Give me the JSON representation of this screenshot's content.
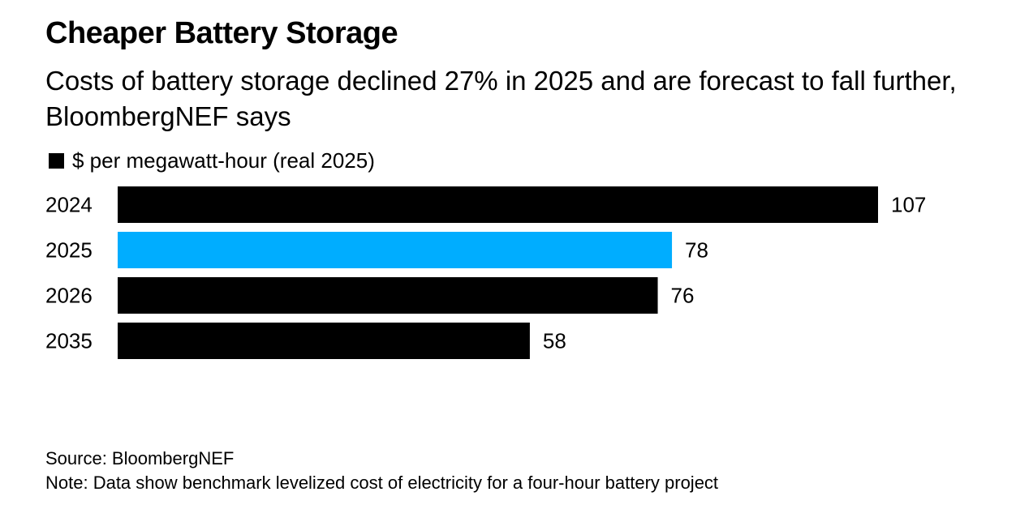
{
  "header": {
    "title": "Cheaper Battery Storage",
    "subtitle": "Costs of battery storage declined 27% in 2025 and are forecast to fall further, BloombergNEF says"
  },
  "footer": {
    "source": "Source: BloombergNEF",
    "note": "Note: Data show benchmark levelized cost of electricity for a four-hour battery project"
  },
  "colors": {
    "bar_default": "#000000",
    "bar_highlight": "#00adff",
    "text": "#000000"
  },
  "chart_data": {
    "type": "bar",
    "orientation": "horizontal",
    "categories": [
      "2024",
      "2025",
      "2026",
      "2035"
    ],
    "series": [
      {
        "name": "$ per megawatt-hour (real 2025)",
        "values": [
          107,
          78,
          76,
          58
        ]
      }
    ],
    "data_labels": [
      "107",
      "78",
      "76",
      "58"
    ],
    "highlighted_category": "2025",
    "xlim": [
      0,
      107
    ],
    "grid": false,
    "legend_placement": "top-left"
  }
}
